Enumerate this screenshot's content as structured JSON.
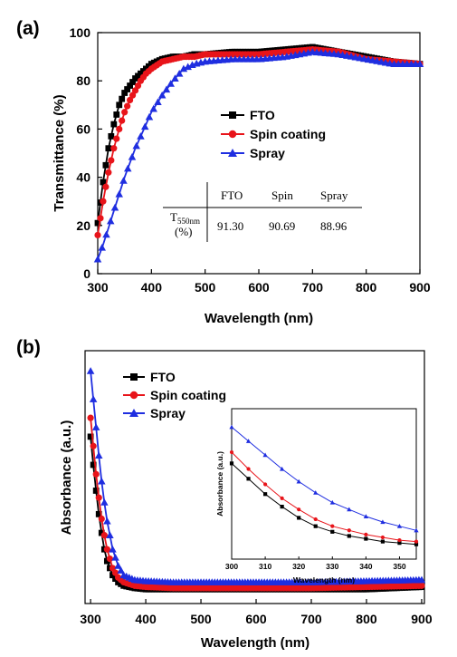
{
  "colors": {
    "FTO": "#000000",
    "Spin coating": "#e8141a",
    "Spray": "#1f2ee0"
  },
  "chart_data": [
    {
      "panel": "(a)",
      "type": "line",
      "xlabel": "Wavelength (nm)",
      "ylabel": "Transmittance (%)",
      "xlim": [
        300,
        900
      ],
      "ylim": [
        0,
        100
      ],
      "xticks": [
        300,
        400,
        500,
        600,
        700,
        800,
        900
      ],
      "yticks": [
        0,
        20,
        40,
        60,
        80,
        100
      ],
      "legend_position": "center-right",
      "grid": false,
      "series": [
        {
          "name": "FTO",
          "marker": "square",
          "x": [
            300,
            310,
            320,
            330,
            340,
            350,
            360,
            370,
            380,
            390,
            400,
            420,
            440,
            460,
            480,
            500,
            550,
            600,
            650,
            700,
            750,
            800,
            850,
            900
          ],
          "y": [
            21,
            38,
            52,
            62,
            70,
            75,
            78,
            81,
            83,
            85,
            87,
            89,
            90,
            90,
            91,
            91,
            92,
            92,
            93,
            94,
            92,
            90,
            88,
            87
          ]
        },
        {
          "name": "Spin coating",
          "marker": "circle",
          "x": [
            300,
            310,
            320,
            330,
            340,
            350,
            360,
            370,
            380,
            390,
            400,
            420,
            440,
            460,
            480,
            500,
            550,
            600,
            650,
            700,
            750,
            800,
            850,
            900
          ],
          "y": [
            16,
            30,
            42,
            52,
            60,
            67,
            72,
            76,
            80,
            83,
            85,
            88,
            89,
            90,
            90,
            91,
            91,
            91,
            92,
            93,
            92,
            89,
            88,
            87
          ]
        },
        {
          "name": "Spray",
          "marker": "triangle",
          "x": [
            300,
            310,
            320,
            330,
            340,
            350,
            360,
            370,
            380,
            390,
            400,
            420,
            440,
            460,
            480,
            500,
            550,
            600,
            650,
            700,
            750,
            800,
            850,
            900
          ],
          "y": [
            6,
            12,
            19,
            26,
            33,
            40,
            46,
            52,
            57,
            62,
            67,
            74,
            80,
            85,
            87,
            88,
            89,
            89,
            90,
            92,
            91,
            89,
            87,
            87
          ]
        }
      ],
      "inset_table": {
        "headers": [
          "",
          "FTO",
          "Spin",
          "Spray"
        ],
        "row_label_main": "T",
        "row_label_sub": "550nm",
        "row_label_unit": "(%)",
        "values": [
          "91.30",
          "90.69",
          "88.96"
        ]
      }
    },
    {
      "panel": "(b)",
      "type": "line",
      "xlabel": "Wavelength (nm)",
      "ylabel": "Absorbance (a.u.)",
      "xlim": [
        290,
        905
      ],
      "ylim": [
        0,
        1
      ],
      "xticks": [
        300,
        400,
        500,
        600,
        700,
        800,
        900
      ],
      "legend_position": "top-left",
      "grid": false,
      "series": [
        {
          "name": "FTO",
          "marker": "square",
          "x": [
            300,
            305,
            310,
            315,
            320,
            325,
            330,
            340,
            350,
            360,
            380,
            400,
            450,
            500,
            600,
            700,
            800,
            900
          ],
          "y": [
            0.68,
            0.56,
            0.45,
            0.35,
            0.27,
            0.2,
            0.15,
            0.09,
            0.06,
            0.045,
            0.035,
            0.03,
            0.03,
            0.03,
            0.03,
            0.03,
            0.03,
            0.04
          ]
        },
        {
          "name": "Spin coating",
          "marker": "circle",
          "x": [
            300,
            305,
            310,
            315,
            320,
            325,
            330,
            340,
            350,
            360,
            380,
            400,
            450,
            500,
            600,
            700,
            800,
            900
          ],
          "y": [
            0.76,
            0.64,
            0.52,
            0.42,
            0.33,
            0.26,
            0.2,
            0.12,
            0.08,
            0.06,
            0.045,
            0.04,
            0.035,
            0.035,
            0.035,
            0.035,
            0.04,
            0.045
          ]
        },
        {
          "name": "Spray",
          "marker": "triangle",
          "x": [
            300,
            305,
            310,
            315,
            320,
            325,
            330,
            340,
            350,
            360,
            380,
            400,
            450,
            500,
            600,
            700,
            800,
            900
          ],
          "y": [
            0.96,
            0.84,
            0.72,
            0.6,
            0.49,
            0.4,
            0.32,
            0.2,
            0.13,
            0.09,
            0.07,
            0.065,
            0.06,
            0.06,
            0.06,
            0.06,
            0.065,
            0.07
          ]
        }
      ],
      "inset": {
        "xlabel": "Wavelength (nm)",
        "ylabel": "Absorbance (a.u.)",
        "xlim": [
          300,
          355
        ],
        "xticks": [
          300,
          310,
          320,
          330,
          340,
          350
        ],
        "ylim": [
          0,
          1
        ],
        "series": [
          {
            "name": "FTO",
            "x": [
              300,
              305,
              310,
              315,
              320,
              325,
              330,
              335,
              340,
              345,
              350,
              355
            ],
            "y": [
              0.66,
              0.55,
              0.44,
              0.35,
              0.27,
              0.21,
              0.17,
              0.14,
              0.12,
              0.1,
              0.09,
              0.08
            ]
          },
          {
            "name": "Spin coating",
            "x": [
              300,
              305,
              310,
              315,
              320,
              325,
              330,
              335,
              340,
              345,
              350,
              355
            ],
            "y": [
              0.74,
              0.62,
              0.51,
              0.41,
              0.33,
              0.26,
              0.21,
              0.18,
              0.15,
              0.13,
              0.11,
              0.1
            ]
          },
          {
            "name": "Spray",
            "x": [
              300,
              305,
              310,
              315,
              320,
              325,
              330,
              335,
              340,
              345,
              350,
              355
            ],
            "y": [
              0.92,
              0.82,
              0.72,
              0.62,
              0.53,
              0.45,
              0.38,
              0.33,
              0.28,
              0.24,
              0.21,
              0.18
            ]
          }
        ]
      }
    }
  ]
}
